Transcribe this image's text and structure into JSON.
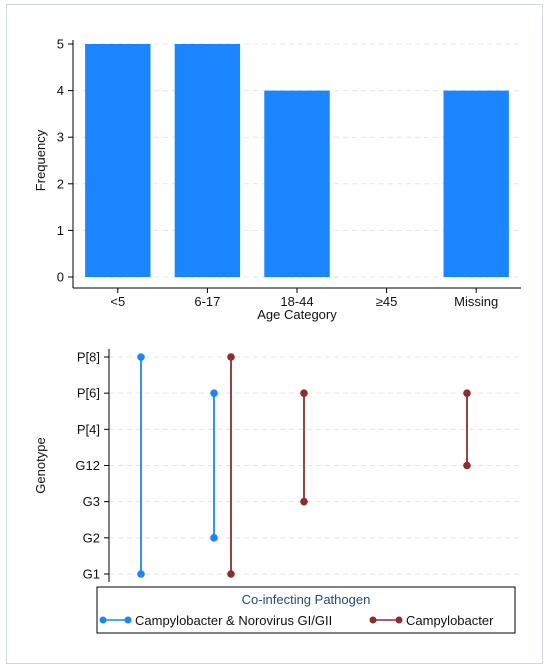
{
  "chart_data": [
    {
      "type": "bar",
      "xlabel": "Age Category",
      "ylabel": "Frequency",
      "categories": [
        "<5",
        "6-17",
        "18-44",
        "≥45",
        "Missing"
      ],
      "values": [
        5,
        5,
        4,
        0,
        4
      ],
      "ylim": [
        0,
        5
      ],
      "yticks": [
        "0",
        "1",
        "2",
        "3",
        "4",
        "5"
      ],
      "grid": true,
      "bar_color": "#1a85ff"
    },
    {
      "type": "range",
      "ylabel": "Genotype",
      "yticks": [
        "G1",
        "G2",
        "G3",
        "G12",
        "P[4]",
        "P[6]",
        "P[8]"
      ],
      "grid": true,
      "legend": {
        "title": "Co-infecting Pathogen",
        "placement": "bottom",
        "entries": [
          {
            "label": "Campylobacter & Norovirus GI/GII",
            "color": "#1a85ff"
          },
          {
            "label": "Campylobacter",
            "color": "#8b2e2e"
          }
        ]
      },
      "series": [
        {
          "series": 0,
          "x": 1,
          "low": "G1",
          "high": "P[8]"
        },
        {
          "series": 0,
          "x": 2,
          "low": "G2",
          "high": "P[6]"
        },
        {
          "series": 1,
          "x": 2,
          "low": "G1",
          "high": "P[8]"
        },
        {
          "series": 1,
          "x": 3,
          "low": "G3",
          "high": "P[6]"
        },
        {
          "series": 1,
          "x": 5,
          "low": "G12",
          "high": "P[6]"
        }
      ]
    }
  ]
}
